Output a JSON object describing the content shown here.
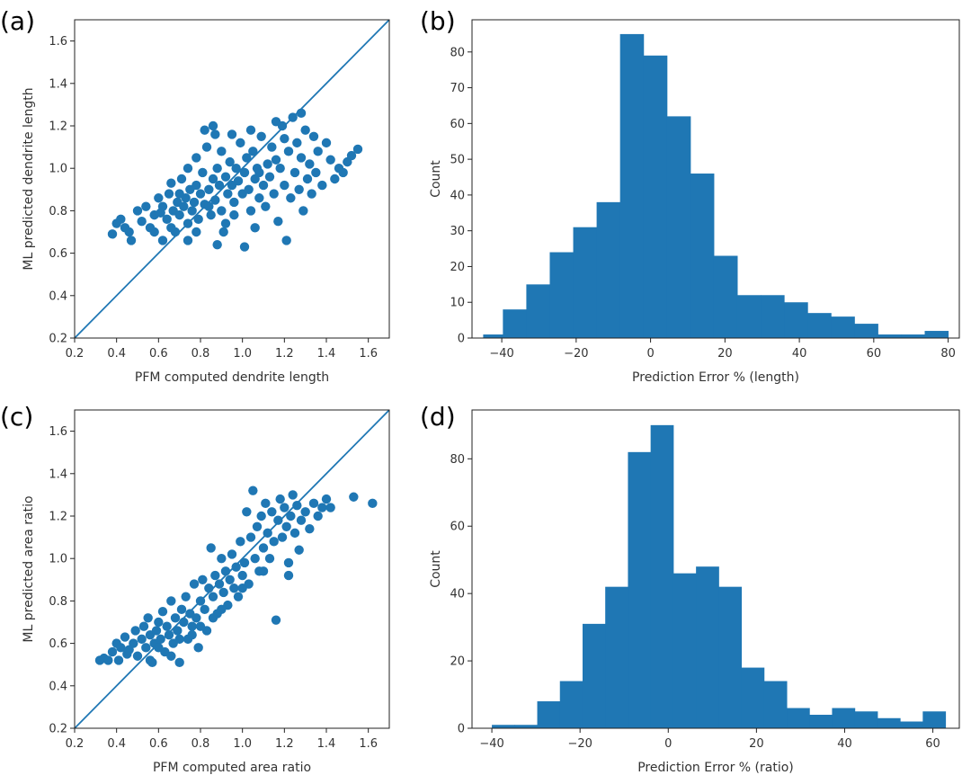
{
  "colors": {
    "data": "#1f77b4",
    "axis": "#222222",
    "text": "#333333"
  },
  "chart_data": [
    {
      "panel": "(a)",
      "type": "scatter",
      "xlabel": "PFM computed dendrite length",
      "ylabel": "ML predicted dendrite length",
      "xlim": [
        0.2,
        1.7
      ],
      "ylim": [
        0.2,
        1.7
      ],
      "xticks": [
        0.2,
        0.4,
        0.6,
        0.8,
        1.0,
        1.2,
        1.4,
        1.6
      ],
      "yticks": [
        0.2,
        0.4,
        0.6,
        0.8,
        1.0,
        1.2,
        1.4,
        1.6
      ],
      "identity_line": true,
      "points": [
        [
          0.38,
          0.69
        ],
        [
          0.4,
          0.74
        ],
        [
          0.42,
          0.76
        ],
        [
          0.44,
          0.72
        ],
        [
          0.46,
          0.7
        ],
        [
          0.47,
          0.66
        ],
        [
          0.5,
          0.8
        ],
        [
          0.52,
          0.75
        ],
        [
          0.54,
          0.82
        ],
        [
          0.56,
          0.72
        ],
        [
          0.58,
          0.78
        ],
        [
          0.6,
          0.86
        ],
        [
          0.61,
          0.79
        ],
        [
          0.62,
          0.82
        ],
        [
          0.64,
          0.76
        ],
        [
          0.65,
          0.88
        ],
        [
          0.66,
          0.93
        ],
        [
          0.67,
          0.8
        ],
        [
          0.68,
          0.7
        ],
        [
          0.69,
          0.84
        ],
        [
          0.7,
          0.78
        ],
        [
          0.71,
          0.95
        ],
        [
          0.72,
          0.82
        ],
        [
          0.73,
          0.86
        ],
        [
          0.74,
          0.74
        ],
        [
          0.74,
          1.0
        ],
        [
          0.75,
          0.9
        ],
        [
          0.76,
          0.8
        ],
        [
          0.77,
          0.84
        ],
        [
          0.78,
          1.05
        ],
        [
          0.78,
          0.92
        ],
        [
          0.79,
          0.76
        ],
        [
          0.8,
          0.88
        ],
        [
          0.81,
          0.98
        ],
        [
          0.82,
          0.83
        ],
        [
          0.83,
          1.1
        ],
        [
          0.84,
          0.9
        ],
        [
          0.85,
          0.78
        ],
        [
          0.86,
          0.95
        ],
        [
          0.87,
          1.16
        ],
        [
          0.87,
          0.85
        ],
        [
          0.88,
          1.0
        ],
        [
          0.89,
          0.92
        ],
        [
          0.9,
          0.8
        ],
        [
          0.9,
          1.08
        ],
        [
          0.91,
          0.7
        ],
        [
          0.92,
          0.96
        ],
        [
          0.93,
          0.88
        ],
        [
          0.94,
          1.03
        ],
        [
          0.95,
          0.92
        ],
        [
          0.96,
          0.84
        ],
        [
          0.97,
          1.0
        ],
        [
          0.98,
          0.94
        ],
        [
          0.99,
          1.12
        ],
        [
          1.0,
          0.88
        ],
        [
          1.01,
          0.98
        ],
        [
          1.02,
          1.05
        ],
        [
          1.03,
          0.9
        ],
        [
          1.04,
          0.8
        ],
        [
          1.05,
          1.08
        ],
        [
          1.06,
          0.95
        ],
        [
          1.07,
          1.0
        ],
        [
          1.08,
          0.86
        ],
        [
          1.09,
          1.15
        ],
        [
          1.1,
          0.92
        ],
        [
          1.11,
          0.82
        ],
        [
          1.12,
          1.02
        ],
        [
          1.13,
          0.96
        ],
        [
          1.14,
          1.1
        ],
        [
          1.15,
          0.88
        ],
        [
          1.16,
          1.04
        ],
        [
          1.17,
          0.75
        ],
        [
          1.18,
          1.0
        ],
        [
          1.19,
          1.2
        ],
        [
          1.2,
          0.92
        ],
        [
          1.21,
          0.66
        ],
        [
          1.22,
          1.08
        ],
        [
          1.23,
          0.86
        ],
        [
          1.24,
          1.24
        ],
        [
          1.25,
          0.98
        ],
        [
          1.26,
          1.12
        ],
        [
          1.27,
          0.9
        ],
        [
          1.28,
          1.05
        ],
        [
          1.29,
          0.8
        ],
        [
          1.3,
          1.18
        ],
        [
          1.31,
          0.95
        ],
        [
          1.32,
          1.02
        ],
        [
          1.33,
          0.88
        ],
        [
          1.34,
          1.15
        ],
        [
          1.35,
          0.98
        ],
        [
          1.36,
          1.08
        ],
        [
          1.38,
          0.92
        ],
        [
          1.4,
          1.12
        ],
        [
          1.42,
          1.04
        ],
        [
          1.44,
          0.95
        ],
        [
          1.46,
          1.0
        ],
        [
          1.48,
          0.98
        ],
        [
          1.5,
          1.03
        ],
        [
          1.52,
          1.06
        ],
        [
          1.55,
          1.09
        ],
        [
          0.82,
          1.18
        ],
        [
          0.86,
          1.2
        ],
        [
          0.95,
          1.16
        ],
        [
          1.04,
          1.18
        ],
        [
          1.16,
          1.22
        ],
        [
          1.28,
          1.26
        ],
        [
          0.62,
          0.66
        ],
        [
          0.74,
          0.66
        ],
        [
          0.88,
          0.64
        ],
        [
          1.01,
          0.63
        ],
        [
          0.58,
          0.7
        ],
        [
          0.66,
          0.72
        ],
        [
          0.78,
          0.7
        ],
        [
          0.92,
          0.74
        ],
        [
          1.06,
          0.72
        ],
        [
          0.7,
          0.88
        ],
        [
          0.84,
          0.82
        ],
        [
          0.96,
          0.78
        ],
        [
          1.08,
          0.98
        ],
        [
          1.2,
          1.14
        ]
      ]
    },
    {
      "panel": "(b)",
      "type": "bar",
      "xlabel": "Prediction Error % (length)",
      "ylabel": "Count",
      "xlim": [
        -48,
        83
      ],
      "ylim": [
        0,
        89
      ],
      "xticks": [
        -40,
        -20,
        0,
        20,
        40,
        60,
        80
      ],
      "yticks": [
        0,
        10,
        20,
        30,
        40,
        50,
        60,
        70,
        80
      ],
      "bin_edges": [
        -45,
        -39.7,
        -33.4,
        -27.1,
        -20.8,
        -14.5,
        -8.2,
        -1.9,
        4.4,
        10.7,
        17.0,
        23.3,
        29.6,
        35.9,
        42.2,
        48.5,
        54.8,
        61.1,
        67.4,
        73.7,
        80.0
      ],
      "values": [
        1,
        8,
        15,
        24,
        31,
        38,
        85,
        79,
        62,
        46,
        23,
        12,
        12,
        10,
        7,
        6,
        4,
        1,
        1,
        2
      ]
    },
    {
      "panel": "(c)",
      "type": "scatter",
      "xlabel": "PFM computed area ratio",
      "ylabel": "ML predicted area ratio",
      "xlim": [
        0.2,
        1.7
      ],
      "ylim": [
        0.2,
        1.7
      ],
      "xticks": [
        0.2,
        0.4,
        0.6,
        0.8,
        1.0,
        1.2,
        1.4,
        1.6
      ],
      "yticks": [
        0.2,
        0.4,
        0.6,
        0.8,
        1.0,
        1.2,
        1.4,
        1.6
      ],
      "identity_line": true,
      "points": [
        [
          0.32,
          0.52
        ],
        [
          0.34,
          0.53
        ],
        [
          0.36,
          0.52
        ],
        [
          0.38,
          0.56
        ],
        [
          0.4,
          0.6
        ],
        [
          0.41,
          0.52
        ],
        [
          0.42,
          0.58
        ],
        [
          0.44,
          0.63
        ],
        [
          0.45,
          0.55
        ],
        [
          0.46,
          0.57
        ],
        [
          0.48,
          0.6
        ],
        [
          0.49,
          0.66
        ],
        [
          0.5,
          0.54
        ],
        [
          0.52,
          0.62
        ],
        [
          0.53,
          0.68
        ],
        [
          0.54,
          0.58
        ],
        [
          0.55,
          0.72
        ],
        [
          0.56,
          0.64
        ],
        [
          0.57,
          0.51
        ],
        [
          0.58,
          0.6
        ],
        [
          0.59,
          0.66
        ],
        [
          0.6,
          0.7
        ],
        [
          0.61,
          0.62
        ],
        [
          0.62,
          0.75
        ],
        [
          0.63,
          0.56
        ],
        [
          0.64,
          0.68
        ],
        [
          0.65,
          0.64
        ],
        [
          0.66,
          0.8
        ],
        [
          0.67,
          0.6
        ],
        [
          0.68,
          0.72
        ],
        [
          0.69,
          0.66
        ],
        [
          0.7,
          0.51
        ],
        [
          0.71,
          0.76
        ],
        [
          0.72,
          0.7
        ],
        [
          0.73,
          0.82
        ],
        [
          0.74,
          0.62
        ],
        [
          0.75,
          0.74
        ],
        [
          0.76,
          0.68
        ],
        [
          0.77,
          0.88
        ],
        [
          0.78,
          0.72
        ],
        [
          0.79,
          0.58
        ],
        [
          0.8,
          0.8
        ],
        [
          0.81,
          0.9
        ],
        [
          0.82,
          0.76
        ],
        [
          0.83,
          0.66
        ],
        [
          0.84,
          0.86
        ],
        [
          0.85,
          1.05
        ],
        [
          0.86,
          0.82
        ],
        [
          0.87,
          0.92
        ],
        [
          0.88,
          0.74
        ],
        [
          0.89,
          0.88
        ],
        [
          0.9,
          1.0
        ],
        [
          0.91,
          0.84
        ],
        [
          0.92,
          0.94
        ],
        [
          0.93,
          0.78
        ],
        [
          0.94,
          0.9
        ],
        [
          0.95,
          1.02
        ],
        [
          0.96,
          0.86
        ],
        [
          0.97,
          0.96
        ],
        [
          0.98,
          0.82
        ],
        [
          0.99,
          1.08
        ],
        [
          1.0,
          0.92
        ],
        [
          1.01,
          0.98
        ],
        [
          1.02,
          1.22
        ],
        [
          1.03,
          0.88
        ],
        [
          1.04,
          1.1
        ],
        [
          1.05,
          1.32
        ],
        [
          1.06,
          1.0
        ],
        [
          1.07,
          1.15
        ],
        [
          1.08,
          0.94
        ],
        [
          1.09,
          1.2
        ],
        [
          1.1,
          1.05
        ],
        [
          1.11,
          1.26
        ],
        [
          1.12,
          1.12
        ],
        [
          1.13,
          1.0
        ],
        [
          1.14,
          1.22
        ],
        [
          1.15,
          1.08
        ],
        [
          1.16,
          0.71
        ],
        [
          1.17,
          1.18
        ],
        [
          1.18,
          1.28
        ],
        [
          1.19,
          1.1
        ],
        [
          1.2,
          1.24
        ],
        [
          1.21,
          1.15
        ],
        [
          1.22,
          0.98
        ],
        [
          1.23,
          1.2
        ],
        [
          1.24,
          1.3
        ],
        [
          1.25,
          1.12
        ],
        [
          1.26,
          1.25
        ],
        [
          1.27,
          1.04
        ],
        [
          1.28,
          1.18
        ],
        [
          1.3,
          1.22
        ],
        [
          1.32,
          1.14
        ],
        [
          1.34,
          1.26
        ],
        [
          1.36,
          1.2
        ],
        [
          1.38,
          1.24
        ],
        [
          1.4,
          1.28
        ],
        [
          1.42,
          1.24
        ],
        [
          1.53,
          1.29
        ],
        [
          1.62,
          1.26
        ],
        [
          1.22,
          0.92
        ],
        [
          0.6,
          0.58
        ],
        [
          0.7,
          0.62
        ],
        [
          0.8,
          0.68
        ],
        [
          0.9,
          0.76
        ],
        [
          1.0,
          0.86
        ],
        [
          1.1,
          0.94
        ],
        [
          0.56,
          0.52
        ],
        [
          0.66,
          0.54
        ],
        [
          0.76,
          0.64
        ],
        [
          0.86,
          0.72
        ]
      ]
    },
    {
      "panel": "(d)",
      "type": "bar",
      "xlabel": "Prediction Error % (ratio)",
      "ylabel": "Count",
      "xlim": [
        -44.5,
        66
      ],
      "ylim": [
        0,
        94.5
      ],
      "xticks": [
        -40,
        -20,
        0,
        20,
        40,
        60
      ],
      "yticks": [
        0,
        20,
        40,
        60,
        80
      ],
      "bin_edges": [
        -40,
        -34.86,
        -29.71,
        -24.57,
        -19.43,
        -14.29,
        -9.14,
        -4.0,
        1.14,
        6.29,
        11.43,
        16.57,
        21.71,
        26.86,
        32.0,
        37.14,
        42.29,
        47.43,
        52.57,
        57.71,
        62.86
      ],
      "values": [
        1,
        1,
        8,
        14,
        31,
        42,
        82,
        90,
        46,
        48,
        42,
        18,
        14,
        6,
        4,
        6,
        5,
        3,
        2,
        5
      ]
    }
  ]
}
